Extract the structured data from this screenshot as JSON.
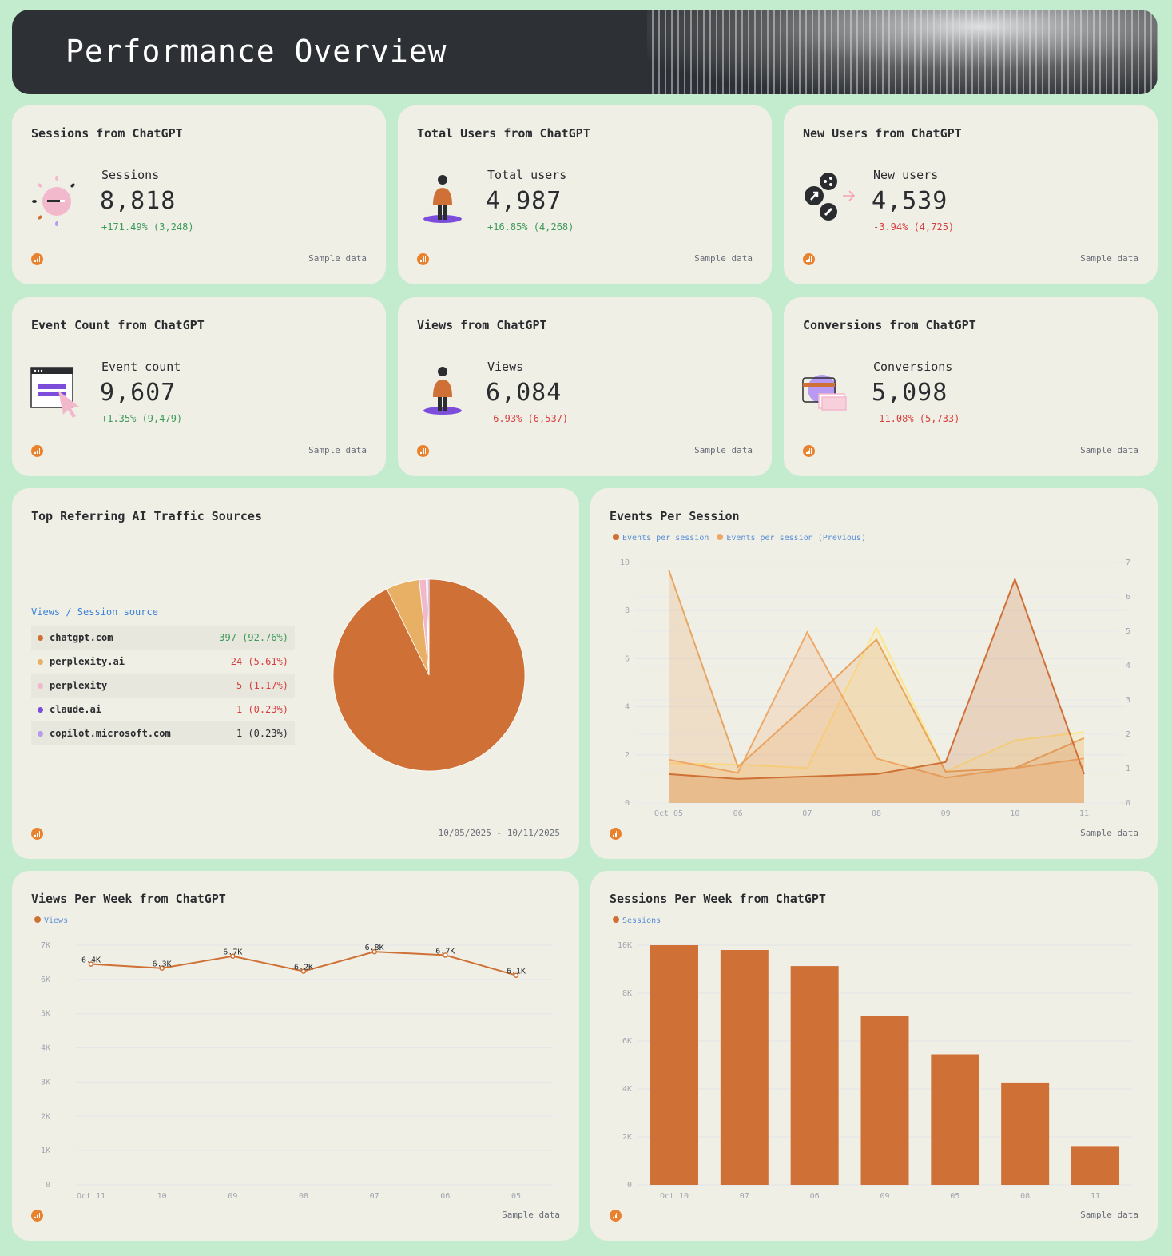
{
  "header": {
    "title": "Performance Overview"
  },
  "footer_label": "Sample data",
  "kpis": [
    {
      "title": "Sessions from ChatGPT",
      "label": "Sessions",
      "value": "8,818",
      "change": "+171.49% (3,248)",
      "trend": "up",
      "icon": "sun-toggle-icon"
    },
    {
      "title": "Total Users from ChatGPT",
      "label": "Total users",
      "value": "4,987",
      "change": "+16.85% (4,268)",
      "trend": "up",
      "icon": "person-icon"
    },
    {
      "title": "New Users from ChatGPT",
      "label": "New users",
      "value": "4,539",
      "change": "-3.94% (4,725)",
      "trend": "down",
      "icon": "share-link-icon"
    },
    {
      "title": "Event Count from ChatGPT",
      "label": "Event count",
      "value": "9,607",
      "change": "+1.35% (9,479)",
      "trend": "up",
      "icon": "browser-click-icon"
    },
    {
      "title": "Views from ChatGPT",
      "label": "Views",
      "value": "6,084",
      "change": "-6.93% (6,537)",
      "trend": "down",
      "icon": "person-icon"
    },
    {
      "title": "Conversions from ChatGPT",
      "label": "Conversions",
      "value": "5,098",
      "change": "-11.08% (5,733)",
      "trend": "down",
      "icon": "credit-card-tickets-icon"
    }
  ],
  "colors": {
    "accent": "#cf7136",
    "up": "#3c9a5a",
    "down": "#d84040",
    "legend_text": "#5a8fd8"
  },
  "sources": {
    "title": "Top Referring AI Traffic Sources",
    "header": "Views / Session source",
    "date_range": "10/05/2025 - 10/11/2025",
    "items": [
      {
        "name": "chatgpt.com",
        "value": "397 (92.76%)",
        "pct": 92.76,
        "color": "#cf7136",
        "trend": "up"
      },
      {
        "name": "perplexity.ai",
        "value": "24 (5.61%)",
        "pct": 5.61,
        "color": "#e8b065",
        "trend": "down"
      },
      {
        "name": "perplexity",
        "value": "5 (1.17%)",
        "pct": 1.17,
        "color": "#f0b8c8",
        "trend": "down"
      },
      {
        "name": "claude.ai",
        "value": "1 (0.23%)",
        "pct": 0.23,
        "color": "#7c4ddb",
        "trend": "down"
      },
      {
        "name": "copilot.microsoft.com",
        "value": "1 (0.23%)",
        "pct": 0.23,
        "color": "#b89af0",
        "trend": "none"
      }
    ]
  },
  "chart_data": [
    {
      "type": "area",
      "title": "Events Per Session",
      "x": [
        "Oct 05",
        "06",
        "07",
        "08",
        "09",
        "10",
        "11"
      ],
      "ylim": [
        0,
        10
      ],
      "yticks": [
        "0",
        "2",
        "4",
        "6",
        "8",
        "10"
      ],
      "y2lim": [
        0,
        7
      ],
      "y2ticks": [
        "0",
        "1",
        "2",
        "3",
        "4",
        "5",
        "6",
        "7"
      ],
      "grid": true,
      "legend": "top-left",
      "series": [
        {
          "name": "Events per session",
          "color": "#cf7136",
          "values": [
            1.2,
            1.0,
            1.1,
            1.2,
            1.7,
            9.3,
            1.2
          ]
        },
        {
          "name": "Events per session (Previous)",
          "color": "#e8a560",
          "values": [
            9.7,
            1.5,
            4.1,
            6.8,
            1.3,
            1.45,
            2.7
          ]
        },
        {
          "color": "#f0a868",
          "values": [
            1.8,
            1.25,
            7.1,
            1.85,
            1.05,
            1.45,
            1.85
          ]
        },
        {
          "color": "#fde68a",
          "values": [
            1.65,
            1.6,
            1.45,
            7.3,
            1.3,
            2.6,
            2.95
          ]
        }
      ]
    },
    {
      "type": "line",
      "title": "Views Per Week from ChatGPT",
      "x": [
        "Oct 11",
        "10",
        "09",
        "08",
        "07",
        "06",
        "05"
      ],
      "ylim": [
        0,
        7000
      ],
      "yticks": [
        "0",
        "1K",
        "2K",
        "3K",
        "4K",
        "5K",
        "6K",
        "7K"
      ],
      "grid": true,
      "legend": "top-left",
      "series": [
        {
          "name": "Views",
          "color": "#cf7136",
          "values": [
            6450,
            6330,
            6680,
            6240,
            6810,
            6710,
            6120
          ],
          "labels": [
            "6.4K",
            "6.3K",
            "6.7K",
            "6.2K",
            "6.8K",
            "6.7K",
            "6.1K"
          ]
        }
      ]
    },
    {
      "type": "bar",
      "title": "Sessions Per Week from ChatGPT",
      "categories": [
        "Oct 10",
        "07",
        "06",
        "09",
        "05",
        "08",
        "11"
      ],
      "ylim": [
        0,
        10000
      ],
      "yticks": [
        "0",
        "2K",
        "4K",
        "6K",
        "8K",
        "10K"
      ],
      "grid": true,
      "legend": "top-left",
      "series": [
        {
          "name": "Sessions",
          "color": "#cf7136",
          "values": [
            10000,
            9800,
            9130,
            7050,
            5450,
            4270,
            1620
          ]
        }
      ]
    }
  ]
}
